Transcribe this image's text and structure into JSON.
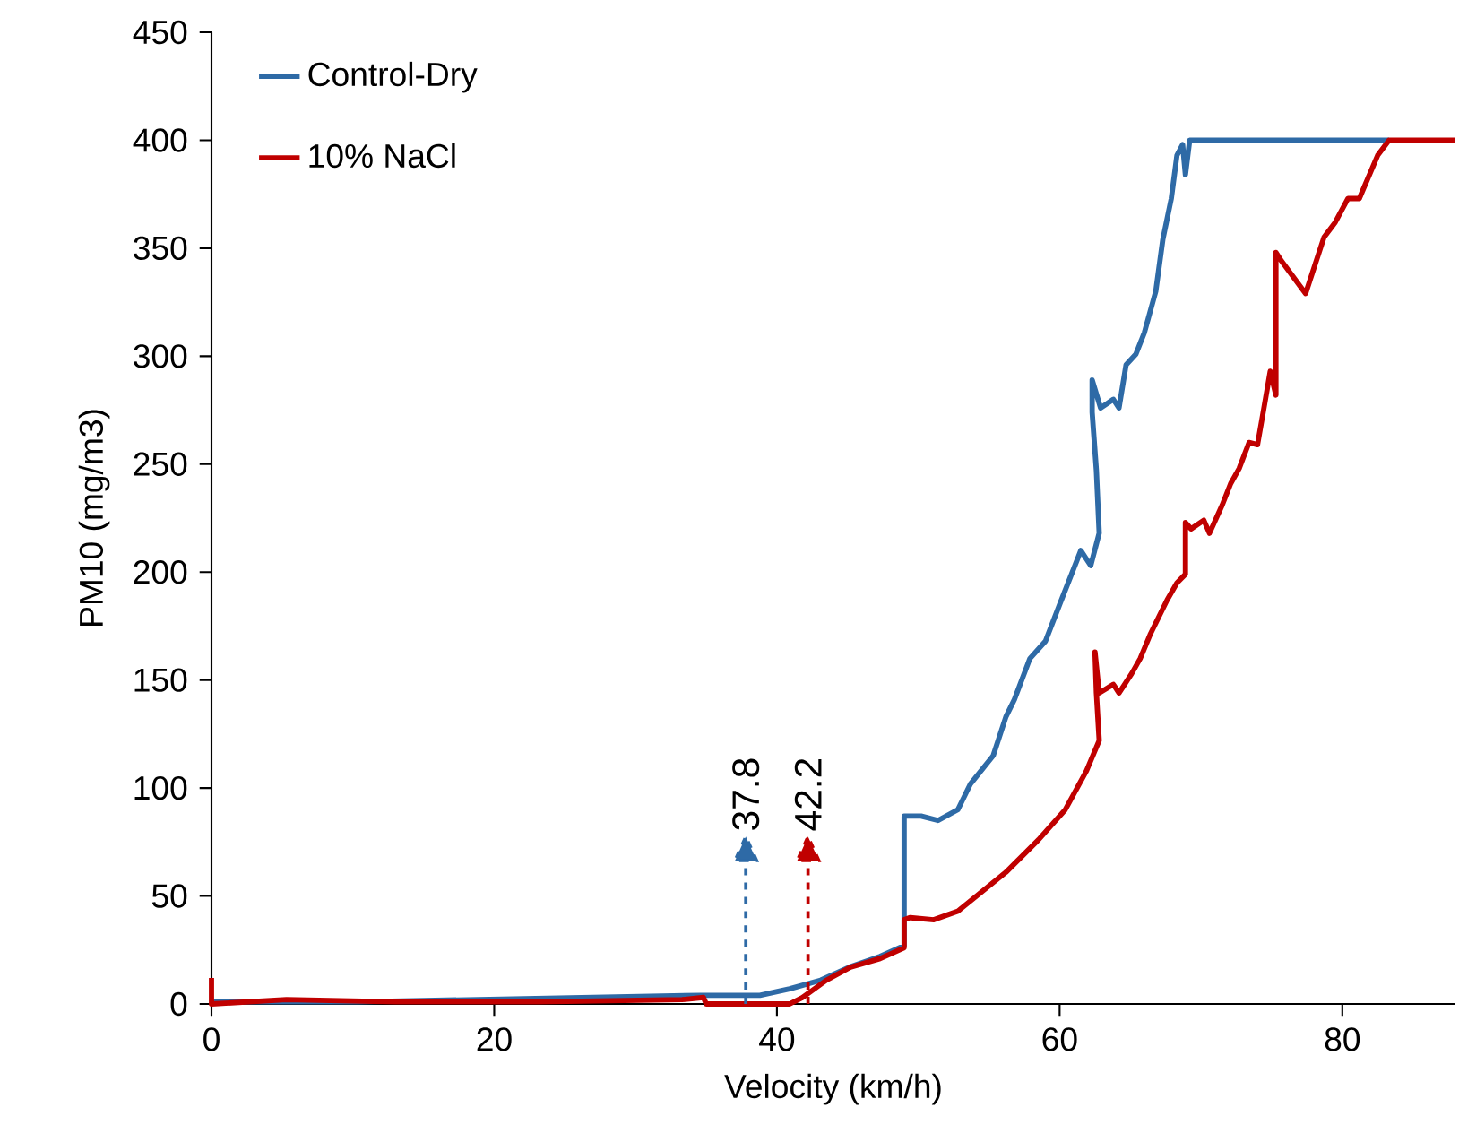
{
  "chart_data": {
    "type": "line",
    "xlabel": "Velocity (km/h)",
    "ylabel": "PM10 (mg/m3)",
    "xlim": [
      0,
      88
    ],
    "xticks": [
      0,
      20,
      40,
      60,
      80
    ],
    "ylim": [
      0,
      450
    ],
    "yticks": [
      0,
      50,
      100,
      150,
      200,
      250,
      300,
      350,
      400,
      450
    ],
    "grid": false,
    "legend": "top left",
    "marker": "none",
    "line_style": "solid",
    "ref_lines": [
      {
        "axis": "x",
        "value": 37.8,
        "label": "37.8",
        "color": "#2e6aa6",
        "line_style": "dashed"
      },
      {
        "axis": "x",
        "value": 42.2,
        "label": "42.2",
        "color": "#c00000",
        "line_style": "dashed"
      }
    ],
    "series": [
      {
        "name": "Control-Dry",
        "color": "#2e6aa6",
        "x": [
          0,
          10.4,
          34.6,
          38.8,
          40.9,
          43.1,
          45.1,
          47.3,
          49.0,
          49.0,
          50.2,
          51.4,
          52.8,
          53.7,
          55.3,
          56.2,
          56.8,
          57.9,
          59.0,
          60.0,
          61.5,
          62.2,
          62.8,
          62.6,
          62.3,
          62.3,
          62.9,
          63.8,
          64.2,
          64.7,
          65.4,
          66.0,
          66.8,
          67.3,
          67.9,
          68.3,
          68.7,
          68.9,
          69.2,
          70.6,
          83.3
        ],
        "values": [
          1,
          1,
          4,
          4,
          7,
          11,
          17,
          22,
          27,
          87,
          87,
          85,
          90,
          102,
          115,
          133,
          141,
          160,
          168,
          185,
          210,
          203,
          218,
          247,
          274,
          289,
          276,
          280,
          276,
          296,
          301,
          311,
          330,
          354,
          373,
          393,
          398,
          384,
          400,
          400,
          400
        ]
      },
      {
        "name": "10% NaCl",
        "color": "#c00000",
        "x": [
          0,
          0,
          5.3,
          13.0,
          23.1,
          33.3,
          34.8,
          35.0,
          40.9,
          41.8,
          43.5,
          45.2,
          47.3,
          49.0,
          49.0,
          49.4,
          51.1,
          52.8,
          54.5,
          56.2,
          58.5,
          60.4,
          61.9,
          62.8,
          62.6,
          62.5,
          62.8,
          63.8,
          64.2,
          65.1,
          65.7,
          66.4,
          67.6,
          68.3,
          68.9,
          68.9,
          69.3,
          70.2,
          70.6,
          71.5,
          72.1,
          72.7,
          73.4,
          74.0,
          74.4,
          74.9,
          75.3,
          75.3,
          75.7,
          77.4,
          78.7,
          79.5,
          80.4,
          81.2,
          82.5,
          83.3,
          88
        ],
        "values": [
          12,
          0,
          2,
          1,
          1,
          2,
          3,
          0,
          0,
          3,
          11,
          17,
          21,
          26,
          39,
          40,
          39,
          43,
          52,
          61,
          76,
          90,
          108,
          122,
          144,
          163,
          144,
          148,
          144,
          153,
          160,
          171,
          187,
          195,
          199,
          223,
          220,
          224,
          218,
          231,
          241,
          248,
          260,
          259,
          274,
          293,
          282,
          348,
          344,
          329,
          355,
          362,
          373,
          373,
          393,
          400,
          400
        ]
      }
    ]
  }
}
